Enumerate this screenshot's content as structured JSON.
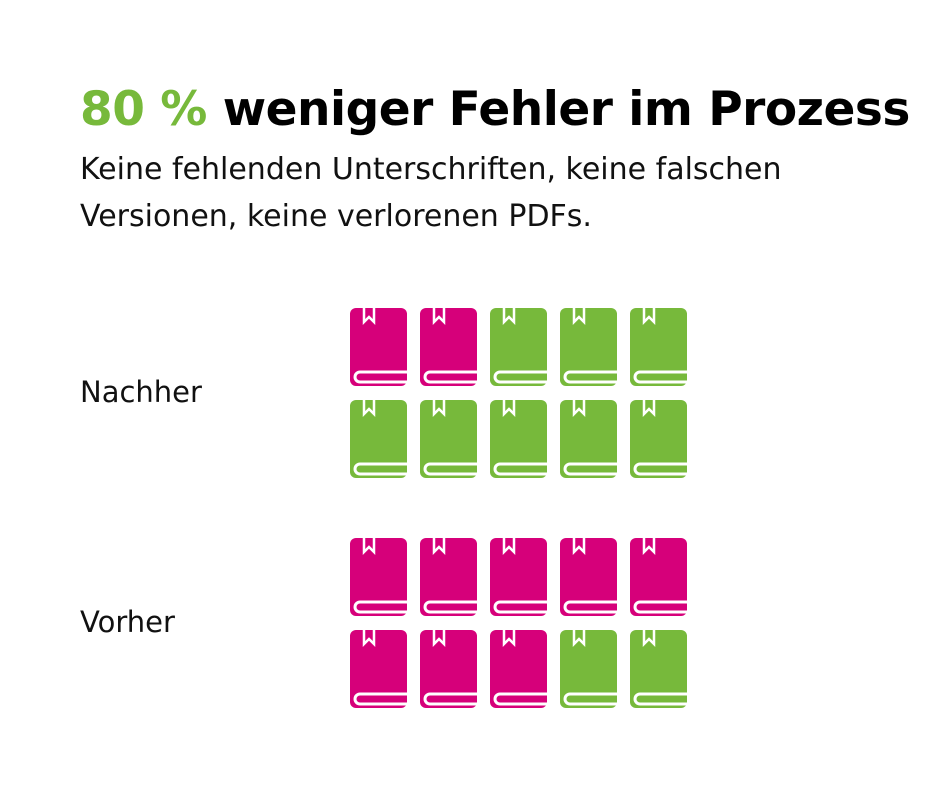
{
  "chart_data": {
    "type": "pictogram",
    "title_highlight": "80 %",
    "title": "weniger Fehler im Prozess",
    "subtitle_lines": [
      "Keine fehlenden Unterschriften, keine falschen",
      "Versionen, keine verlorenen PDFs."
    ],
    "categories": [
      "Nachher",
      "Vorher"
    ],
    "values": [
      2,
      8
    ],
    "total": 10,
    "color": "#d6007a",
    "rest_color": "#77b93b"
  }
}
